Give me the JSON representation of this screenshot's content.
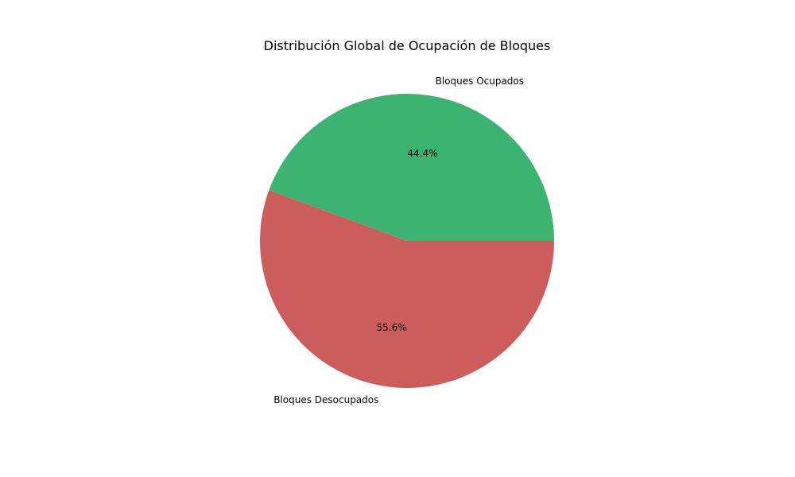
{
  "chart_data": {
    "type": "pie",
    "title": "Distribución Global de Ocupación de Bloques",
    "categories": [
      "Bloques Ocupados",
      "Bloques Desocupados"
    ],
    "values": [
      44.4,
      55.6
    ],
    "percent_labels": [
      "44.4%",
      "55.6%"
    ],
    "colors": [
      "#3cb371",
      "#cd5c5c"
    ],
    "start_angle_deg": 0,
    "direction": "counterclockwise",
    "legend": "none"
  }
}
